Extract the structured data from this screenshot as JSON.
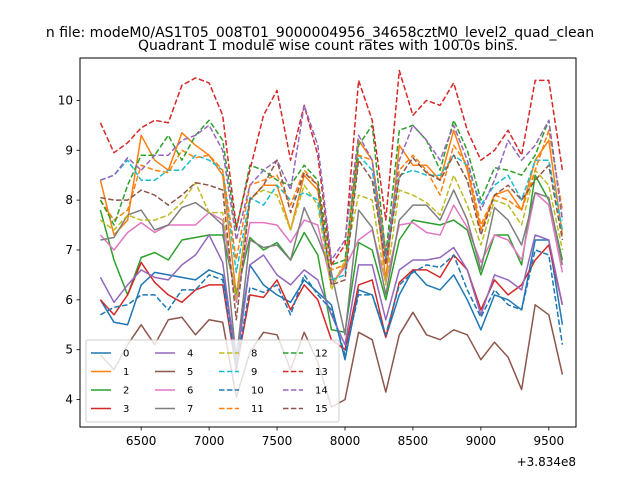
{
  "chart_data": {
    "type": "line",
    "suptitle": "n file: modeM0/AS1T05_008T01_9000004956_34658cztM0_level2_quad_clean",
    "title": "Quadrant 1 module wise count rates with 100.0s bins.",
    "xlabel": "",
    "ylabel": "",
    "x_offset_label": "+3.834e8",
    "xlim": [
      6050,
      9700
    ],
    "ylim": [
      3.45,
      10.85
    ],
    "xticks": [
      6500,
      7000,
      7500,
      8000,
      8500,
      9000,
      9500
    ],
    "xtick_labels": [
      "6500",
      "7000",
      "7500",
      "8000",
      "8500",
      "9000",
      "9500"
    ],
    "yticks": [
      4,
      5,
      6,
      7,
      8,
      9,
      10
    ],
    "ytick_labels": [
      "4",
      "5",
      "6",
      "7",
      "8",
      "9",
      "10"
    ],
    "legend_position": "lower-left",
    "x": [
      6200,
      6300,
      6400,
      6500,
      6600,
      6700,
      6800,
      6900,
      7000,
      7100,
      7200,
      7300,
      7400,
      7500,
      7600,
      7700,
      7800,
      7900,
      8000,
      8100,
      8200,
      8300,
      8400,
      8500,
      8600,
      8700,
      8800,
      8900,
      9000,
      9100,
      9200,
      9300,
      9400,
      9500,
      9600
    ],
    "series": [
      {
        "name": "0",
        "color": "#1f77b4",
        "dash": "solid",
        "values": [
          6.0,
          5.55,
          5.5,
          6.3,
          6.55,
          6.5,
          6.45,
          6.4,
          6.6,
          6.5,
          4.9,
          6.7,
          6.3,
          6.1,
          5.95,
          6.4,
          6.15,
          5.9,
          4.8,
          6.2,
          6.1,
          5.25,
          6.1,
          6.6,
          6.3,
          6.2,
          6.5,
          6.0,
          5.4,
          6.1,
          6.0,
          5.8,
          7.2,
          7.2,
          5.5
        ]
      },
      {
        "name": "1",
        "color": "#ff7f0e",
        "dash": "solid",
        "values": [
          8.4,
          7.3,
          7.6,
          9.3,
          8.8,
          8.6,
          9.35,
          9.1,
          8.9,
          8.5,
          6.1,
          8.0,
          8.3,
          8.3,
          7.4,
          8.5,
          8.2,
          6.3,
          6.7,
          9.2,
          8.8,
          6.4,
          9.1,
          8.7,
          8.7,
          8.4,
          9.4,
          8.6,
          7.4,
          8.1,
          8.2,
          7.8,
          8.8,
          9.2,
          7.3
        ]
      },
      {
        "name": "2",
        "color": "#2ca02c",
        "dash": "solid",
        "values": [
          7.8,
          6.8,
          6.1,
          6.85,
          6.95,
          6.8,
          7.2,
          7.25,
          7.3,
          7.3,
          6.1,
          7.25,
          7.0,
          7.15,
          6.8,
          7.35,
          6.9,
          5.4,
          5.35,
          7.15,
          7.0,
          6.0,
          7.2,
          7.6,
          7.55,
          7.5,
          7.6,
          7.4,
          6.5,
          7.3,
          7.3,
          6.7,
          8.5,
          8.0,
          6.8
        ]
      },
      {
        "name": "3",
        "color": "#d62728",
        "dash": "solid",
        "values": [
          6.0,
          5.7,
          6.1,
          6.75,
          6.35,
          6.1,
          5.95,
          6.2,
          6.3,
          6.3,
          4.6,
          6.1,
          6.05,
          6.4,
          5.8,
          6.3,
          6.0,
          5.2,
          5.0,
          6.3,
          6.4,
          5.25,
          6.35,
          6.6,
          6.6,
          6.45,
          6.9,
          6.6,
          5.8,
          6.4,
          6.1,
          6.3,
          6.8,
          7.1,
          5.9
        ]
      },
      {
        "name": "4",
        "color": "#9467bd",
        "dash": "solid",
        "values": [
          6.45,
          5.95,
          6.3,
          6.6,
          6.45,
          6.4,
          6.7,
          6.9,
          7.3,
          6.75,
          4.7,
          6.7,
          6.9,
          6.5,
          6.3,
          6.6,
          6.4,
          5.7,
          5.1,
          6.7,
          6.7,
          5.6,
          6.6,
          6.8,
          6.8,
          6.85,
          7.05,
          6.6,
          5.7,
          6.5,
          6.4,
          6.2,
          7.3,
          7.2,
          5.9
        ]
      },
      {
        "name": "5",
        "color": "#8c564b",
        "dash": "solid",
        "values": [
          4.9,
          4.6,
          5.1,
          5.5,
          5.1,
          5.6,
          5.65,
          5.3,
          5.6,
          5.55,
          4.05,
          4.95,
          5.35,
          5.3,
          4.6,
          5.35,
          4.75,
          3.85,
          4.0,
          5.35,
          5.2,
          4.15,
          5.3,
          5.75,
          5.3,
          5.2,
          5.4,
          5.3,
          4.8,
          5.15,
          4.85,
          4.2,
          5.9,
          5.7,
          4.5
        ]
      },
      {
        "name": "6",
        "color": "#e377c2",
        "dash": "solid",
        "values": [
          7.3,
          7.0,
          7.35,
          7.55,
          7.35,
          7.5,
          7.5,
          7.5,
          7.75,
          7.6,
          5.95,
          7.55,
          7.55,
          7.5,
          7.15,
          7.6,
          7.5,
          6.3,
          6.65,
          7.2,
          7.4,
          6.35,
          7.5,
          7.55,
          7.35,
          7.3,
          7.9,
          7.45,
          6.75,
          7.3,
          7.2,
          6.8,
          8.15,
          7.9,
          6.55
        ]
      },
      {
        "name": "7",
        "color": "#7f7f7f",
        "dash": "solid",
        "values": [
          7.2,
          7.25,
          7.7,
          7.8,
          7.4,
          7.5,
          7.85,
          7.95,
          7.75,
          7.5,
          4.8,
          7.2,
          7.05,
          7.1,
          6.8,
          7.85,
          7.25,
          6.55,
          5.3,
          7.8,
          7.45,
          6.1,
          7.6,
          7.9,
          7.9,
          7.6,
          8.2,
          7.6,
          6.6,
          7.85,
          7.6,
          7.1,
          8.15,
          8.05,
          6.7
        ]
      },
      {
        "name": "8",
        "color": "#bcbd22",
        "dash": "dashed",
        "values": [
          7.6,
          7.4,
          7.7,
          7.6,
          7.6,
          7.7,
          7.95,
          8.35,
          7.75,
          7.75,
          6.0,
          8.05,
          8.2,
          8.1,
          7.4,
          8.3,
          7.9,
          6.2,
          6.8,
          8.1,
          8.0,
          6.3,
          8.2,
          8.1,
          7.95,
          7.7,
          8.5,
          7.9,
          7.1,
          8.0,
          7.9,
          7.5,
          8.6,
          8.3,
          7.0
        ]
      },
      {
        "name": "9",
        "color": "#17becf",
        "dash": "dashed",
        "values": [
          8.4,
          8.5,
          8.8,
          8.4,
          8.4,
          8.6,
          8.6,
          8.9,
          8.8,
          8.6,
          6.55,
          8.05,
          7.9,
          8.3,
          8.0,
          8.15,
          8.0,
          6.4,
          6.5,
          8.9,
          8.6,
          6.8,
          8.5,
          8.6,
          8.5,
          8.5,
          8.9,
          8.7,
          7.9,
          8.3,
          8.5,
          8.0,
          8.8,
          8.8,
          7.4
        ]
      },
      {
        "name": "10",
        "color": "#1f77b4",
        "dash": "dashed",
        "values": [
          5.7,
          5.85,
          5.9,
          6.1,
          6.1,
          5.8,
          6.2,
          6.2,
          6.5,
          6.4,
          4.65,
          6.25,
          6.15,
          6.3,
          5.7,
          6.5,
          6.1,
          5.8,
          4.9,
          6.1,
          6.1,
          5.3,
          6.3,
          6.55,
          6.7,
          6.65,
          6.9,
          6.2,
          5.65,
          6.2,
          5.9,
          5.8,
          7.0,
          6.9,
          5.1
        ]
      },
      {
        "name": "11",
        "color": "#ff7f0e",
        "dash": "dashed",
        "values": [
          8.0,
          7.6,
          7.8,
          8.7,
          8.6,
          8.55,
          9.0,
          8.85,
          8.9,
          8.6,
          6.8,
          8.3,
          8.4,
          8.5,
          7.9,
          8.6,
          8.3,
          6.6,
          6.7,
          8.9,
          8.8,
          7.0,
          8.6,
          8.9,
          8.6,
          8.1,
          9.1,
          8.7,
          7.5,
          8.1,
          8.0,
          7.8,
          8.6,
          9.4,
          7.8
        ]
      },
      {
        "name": "12",
        "color": "#2ca02c",
        "dash": "dashed",
        "values": [
          8.0,
          7.5,
          8.3,
          8.9,
          8.9,
          9.3,
          8.8,
          9.3,
          9.6,
          9.2,
          7.4,
          8.7,
          8.6,
          8.4,
          8.3,
          8.7,
          8.4,
          6.7,
          6.8,
          9.1,
          9.5,
          6.9,
          9.4,
          9.5,
          9.2,
          8.6,
          9.6,
          9.0,
          8.0,
          8.65,
          8.6,
          8.5,
          8.9,
          9.6,
          7.6
        ]
      },
      {
        "name": "13",
        "color": "#d62728",
        "dash": "dashed",
        "values": [
          9.55,
          8.95,
          9.15,
          9.45,
          9.6,
          9.55,
          10.3,
          10.45,
          10.35,
          9.7,
          7.45,
          8.6,
          9.7,
          10.2,
          8.8,
          9.9,
          8.9,
          6.7,
          7.1,
          10.4,
          9.6,
          7.6,
          10.6,
          9.7,
          10.0,
          9.9,
          10.35,
          9.4,
          8.8,
          9.0,
          9.4,
          8.9,
          10.4,
          10.4,
          8.6
        ]
      },
      {
        "name": "14",
        "color": "#9467bd",
        "dash": "dashed",
        "values": [
          8.4,
          8.5,
          8.85,
          8.6,
          8.9,
          8.9,
          9.2,
          9.3,
          9.5,
          9.0,
          7.2,
          8.3,
          8.6,
          8.8,
          8.2,
          9.9,
          9.1,
          6.8,
          7.2,
          9.3,
          8.8,
          6.8,
          8.8,
          9.5,
          9.2,
          8.8,
          9.5,
          8.8,
          7.8,
          8.4,
          9.2,
          8.8,
          9.1,
          9.6,
          7.6
        ]
      },
      {
        "name": "15",
        "color": "#8c564b",
        "dash": "dashed",
        "values": [
          8.05,
          8.0,
          8.0,
          8.2,
          8.1,
          7.9,
          8.1,
          8.35,
          8.3,
          8.2,
          5.6,
          8.0,
          8.3,
          8.8,
          7.75,
          8.55,
          8.3,
          6.3,
          6.4,
          8.8,
          8.4,
          6.7,
          8.45,
          8.85,
          8.55,
          8.4,
          8.9,
          8.4,
          7.3,
          8.1,
          8.3,
          8.0,
          8.4,
          8.7,
          7.2
        ]
      }
    ]
  }
}
